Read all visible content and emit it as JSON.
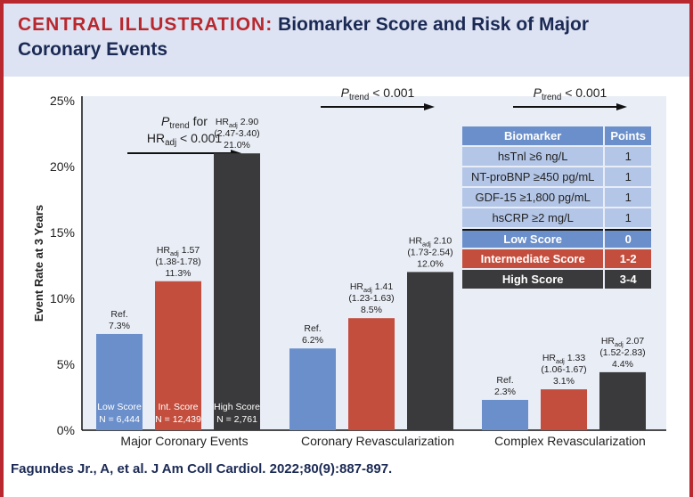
{
  "header": {
    "label": "CENTRAL ILLUSTRATION:",
    "title": "Biomarker Score and Risk of Major Coronary Events"
  },
  "citation": "Fagundes Jr., A, et al. J Am Coll Cardiol. 2022;80(9):887-897.",
  "chart_data": {
    "type": "bar",
    "ylabel": "Event Rate at 3 Years",
    "ylim": [
      0,
      25
    ],
    "yticks": [
      "0%",
      "5%",
      "10%",
      "15%",
      "20%",
      "25%"
    ],
    "categories": [
      "Major Coronary Events",
      "Coronary Revascularization",
      "Complex Revascularization"
    ],
    "trend_labels": [
      {
        "p": "P",
        "sub": "trend",
        "text": " for",
        "line2": "HR",
        "sub2": "adj",
        "text2": " < 0.001"
      },
      {
        "p": "P",
        "sub": "trend",
        "text": " < 0.001"
      },
      {
        "p": "P",
        "sub": "trend",
        "text": " < 0.001"
      }
    ],
    "series": [
      {
        "name": "Low Score",
        "inbar": [
          "Low Score",
          "N = 6,444"
        ],
        "color": "#6a8fcb",
        "values": [
          7.3,
          6.2,
          2.3
        ],
        "labels": [
          [
            "Ref.",
            "7.3%"
          ],
          [
            "Ref.",
            "6.2%"
          ],
          [
            "Ref.",
            "2.3%"
          ]
        ]
      },
      {
        "name": "Int. Score",
        "inbar": [
          "Int. Score",
          "N = 12,439"
        ],
        "color": "#c44e3e",
        "values": [
          11.3,
          8.5,
          3.1
        ],
        "labels": [
          [
            "HR|adj| 1.57",
            "(1.38-1.78)",
            "11.3%"
          ],
          [
            "HR|adj| 1.41",
            "(1.23-1.63)",
            "8.5%"
          ],
          [
            "HR|adj| 1.33",
            "(1.06-1.67)",
            "3.1%"
          ]
        ]
      },
      {
        "name": "High Score",
        "inbar": [
          "High Score",
          "N = 2,761"
        ],
        "color": "#3a3a3c",
        "values": [
          21.0,
          12.0,
          4.4
        ],
        "labels": [
          [
            "HR|adj| 2.90",
            "(2.47-3.40)",
            "21.0%"
          ],
          [
            "HR|adj| 2.10",
            "(1.73-2.54)",
            "12.0%"
          ],
          [
            "HR|adj| 2.07",
            "(1.52-2.83)",
            "4.4%"
          ]
        ]
      }
    ]
  },
  "table": {
    "headers": [
      "Biomarker",
      "Points"
    ],
    "rows": [
      [
        "hsTnl ≥6 ng/L",
        "1"
      ],
      [
        "NT-proBNP ≥450 pg/mL",
        "1"
      ],
      [
        "GDF-15 ≥1,800 pg/mL",
        "1"
      ],
      [
        "hsCRP ≥2 mg/L",
        "1"
      ]
    ],
    "scores": [
      [
        "Low Score",
        "0"
      ],
      [
        "Intermediate Score",
        "1-2"
      ],
      [
        "High Score",
        "3-4"
      ]
    ]
  }
}
